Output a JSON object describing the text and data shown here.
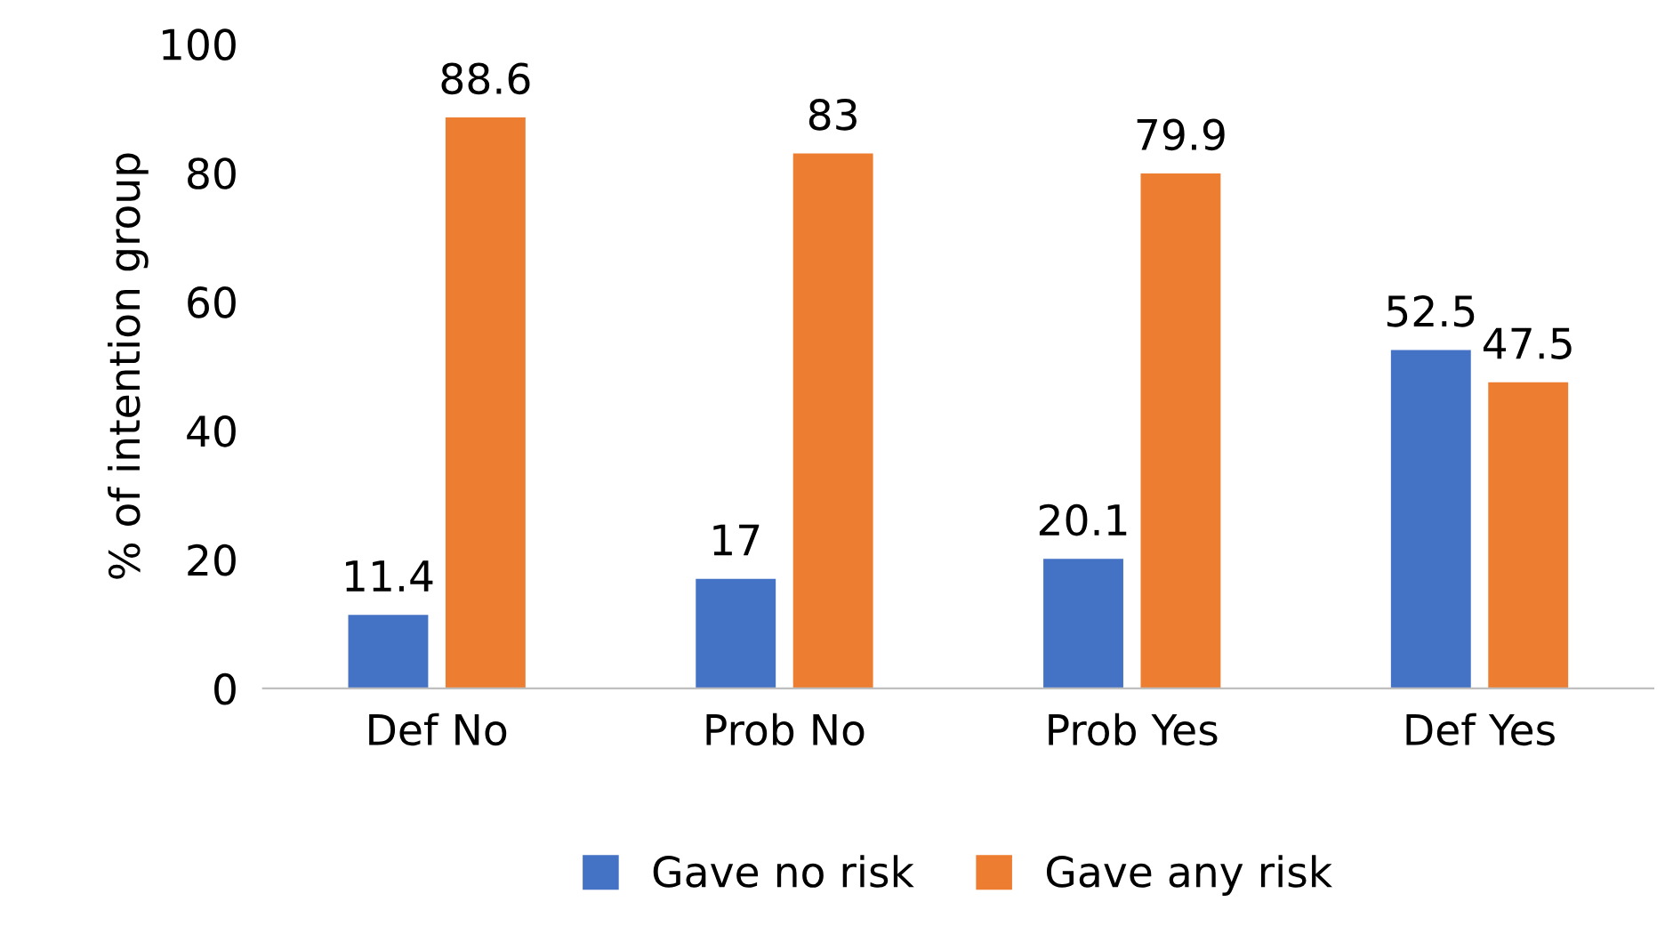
{
  "chart_data": {
    "type": "bar",
    "ylabel": "% of intention group",
    "categories": [
      "Def No",
      "Prob No",
      "Prob Yes",
      "Def Yes"
    ],
    "series": [
      {
        "name": "Gave no risk",
        "color": "#4472c4",
        "values": [
          11.4,
          17,
          20.1,
          52.5
        ]
      },
      {
        "name": "Gave any risk",
        "color": "#ed7d31",
        "values": [
          88.6,
          83,
          79.9,
          47.5
        ]
      }
    ],
    "ylim": [
      0,
      100
    ],
    "yticks": [
      0,
      20,
      40,
      60,
      80,
      100
    ],
    "grid": false,
    "legend": "bottom",
    "data_labels": true
  }
}
